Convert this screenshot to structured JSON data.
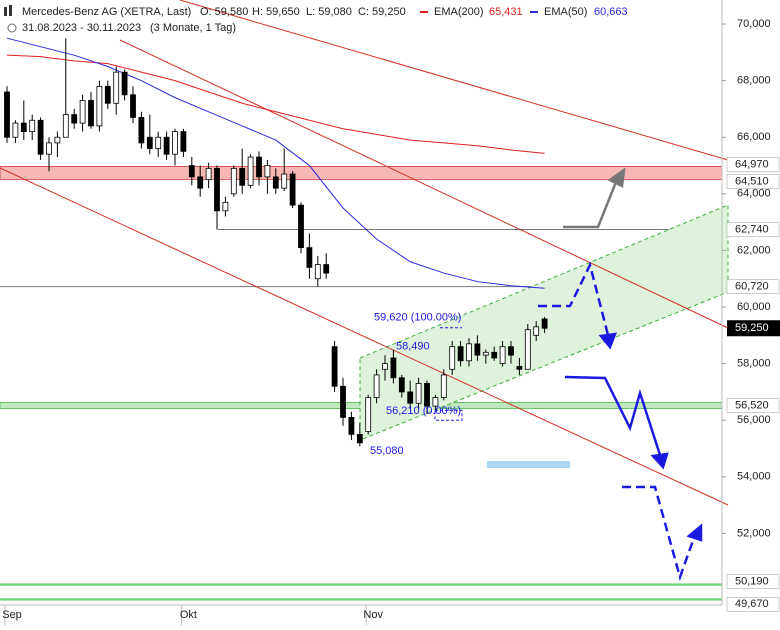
{
  "header": {
    "title": "Mercedes-Benz AG (XETRA, Last)",
    "open": "O: 59,580",
    "high": "H: 59,650",
    "low": "L: 59,080",
    "close": "C: 59,250",
    "range": "31.08.2023 - 30.11.2023",
    "period": "(3 Monate, 1 Tag)"
  },
  "chart_data": {
    "type": "candlestick",
    "categories": [
      "Sep",
      null,
      null,
      null,
      null,
      null,
      null,
      null,
      null,
      null,
      null,
      null,
      null,
      null,
      null,
      null,
      null,
      null,
      null,
      null,
      null,
      "Okt",
      null,
      null,
      null,
      null,
      null,
      null,
      null,
      null,
      null,
      null,
      null,
      null,
      null,
      null,
      null,
      null,
      null,
      null,
      null,
      null,
      null,
      "Nov",
      null,
      null,
      null,
      null,
      null,
      null,
      null,
      null,
      null,
      null,
      null,
      null,
      null,
      null,
      null,
      null,
      null,
      null,
      null,
      null,
      null
    ],
    "open": [
      67.6,
      66.0,
      66.5,
      66.2,
      66.6,
      65.4,
      65.8,
      66.0,
      66.8,
      66.5,
      67.3,
      66.4,
      67.8,
      67.2,
      68.3,
      67.5,
      66.7,
      66.0,
      65.6,
      66.0,
      65.4,
      66.2,
      65.0,
      64.6,
      64.5,
      64.9,
      63.4,
      64.0,
      64.9,
      64.3,
      65.3,
      64.6,
      64.6,
      64.2,
      64.7,
      63.6,
      62.1,
      61.0,
      61.5,
      58.6,
      57.2,
      56.1,
      55.5,
      55.6,
      56.8,
      57.8,
      58.2,
      57.5,
      57.0,
      56.6,
      57.3,
      56.5,
      56.8,
      57.8,
      58.6,
      58.1,
      58.7,
      58.3,
      58.4,
      58.0,
      58.6,
      57.9,
      57.8,
      59.0,
      59.58
    ],
    "high": [
      67.8,
      66.6,
      67.3,
      66.8,
      66.7,
      66.0,
      66.2,
      69.5,
      67.0,
      67.5,
      67.6,
      68.0,
      68.0,
      68.5,
      68.4,
      67.8,
      66.9,
      66.8,
      66.2,
      66.2,
      66.3,
      66.3,
      65.3,
      65.0,
      65.1,
      65.0,
      63.9,
      65.0,
      65.6,
      65.4,
      65.5,
      65.2,
      64.9,
      65.6,
      64.8,
      63.7,
      62.6,
      61.8,
      61.9,
      58.8,
      57.5,
      56.3,
      55.9,
      56.9,
      57.8,
      58.3,
      58.49,
      57.6,
      57.4,
      57.5,
      57.4,
      56.9,
      57.8,
      58.8,
      58.8,
      58.9,
      59.0,
      58.5,
      58.6,
      58.8,
      58.8,
      58.2,
      59.4,
      59.5,
      59.65
    ],
    "low": [
      65.8,
      65.8,
      65.9,
      65.9,
      65.2,
      64.8,
      65.3,
      66.0,
      66.3,
      66.2,
      66.3,
      66.2,
      67.0,
      66.8,
      67.3,
      66.5,
      65.6,
      65.4,
      65.3,
      65.2,
      65.0,
      65.3,
      64.3,
      63.9,
      64.2,
      62.74,
      63.2,
      63.9,
      64.0,
      64.2,
      64.3,
      64.0,
      64.0,
      64.1,
      63.5,
      61.9,
      61.0,
      60.72,
      61.0,
      57.0,
      55.8,
      55.3,
      55.08,
      55.5,
      56.6,
      57.4,
      57.3,
      56.8,
      56.4,
      56.4,
      56.21,
      56.3,
      56.7,
      57.6,
      57.9,
      57.9,
      58.1,
      58.0,
      58.1,
      57.9,
      58.0,
      57.6,
      57.8,
      58.8,
      59.08
    ],
    "close": [
      66.0,
      66.5,
      66.2,
      66.6,
      65.4,
      65.8,
      66.0,
      66.8,
      66.5,
      67.3,
      66.4,
      67.8,
      67.2,
      68.3,
      67.5,
      66.7,
      65.8,
      65.6,
      66.0,
      65.4,
      66.2,
      65.5,
      64.6,
      64.2,
      64.9,
      63.4,
      63.7,
      64.9,
      64.3,
      65.3,
      64.6,
      65.0,
      64.2,
      64.7,
      63.6,
      62.1,
      61.4,
      61.5,
      61.2,
      57.2,
      56.1,
      55.5,
      55.2,
      56.8,
      57.6,
      58.0,
      57.5,
      57.0,
      56.6,
      57.3,
      56.5,
      56.8,
      57.6,
      58.6,
      58.1,
      58.7,
      58.3,
      58.4,
      58.2,
      58.6,
      58.3,
      57.8,
      59.2,
      59.3,
      59.25
    ],
    "up_color": "#ffffff",
    "down_color": "#000000",
    "overlays": [
      {
        "name": "EMA(200)",
        "color": "#e02020",
        "last_label": "65,431",
        "x": [
          0,
          4,
          8,
          12,
          16,
          20,
          24,
          28,
          32,
          36,
          40,
          44,
          48,
          52,
          56,
          60,
          64
        ],
        "values": [
          68.9,
          68.85,
          68.7,
          68.6,
          68.3,
          68.0,
          67.6,
          67.2,
          66.9,
          66.6,
          66.3,
          66.1,
          65.9,
          65.8,
          65.7,
          65.55,
          65.431
        ]
      },
      {
        "name": "EMA(50)",
        "color": "#2a2ae0",
        "last_label": "60,663",
        "x": [
          0,
          4,
          8,
          12,
          16,
          20,
          24,
          28,
          32,
          36,
          40,
          44,
          48,
          52,
          56,
          60,
          64
        ],
        "values": [
          69.5,
          69.2,
          68.9,
          68.5,
          68.0,
          67.4,
          66.9,
          66.4,
          65.9,
          65.0,
          63.5,
          62.4,
          61.6,
          61.2,
          60.9,
          60.75,
          60.663
        ]
      }
    ],
    "ylim": [
      49.47,
      70.85
    ],
    "yticks": [
      {
        "value": 70,
        "label": "70,000"
      },
      {
        "value": 68,
        "label": "68,000"
      },
      {
        "value": 66,
        "label": "66,000"
      },
      {
        "value": 64,
        "label": "64,000"
      },
      {
        "value": 62,
        "label": "62,000"
      },
      {
        "value": 60,
        "label": "60,000"
      },
      {
        "value": 58,
        "label": "58,000"
      },
      {
        "value": 56,
        "label": "56,000"
      },
      {
        "value": 54,
        "label": "54,000"
      },
      {
        "value": 52,
        "label": "52,000"
      }
    ],
    "levels": [
      {
        "value": 64.97,
        "label": "64,970"
      },
      {
        "value": 64.51,
        "label": "64,510"
      },
      {
        "value": 62.74,
        "label": "62,740"
      },
      {
        "value": 60.72,
        "label": "60,720"
      },
      {
        "value": 56.52,
        "label": "56,520"
      },
      {
        "value": 50.19,
        "label": "50,190"
      },
      {
        "value": 49.67,
        "label": "49,670"
      }
    ],
    "last_price": {
      "value": 59.25,
      "label": "59,250"
    },
    "annotations": [
      {
        "value": 59.62,
        "label": "59,620 (100.00%)"
      },
      {
        "value": 58.49,
        "label": "58,490"
      },
      {
        "value": 56.21,
        "label": "56,210 (0.00%)"
      },
      {
        "value": 55.08,
        "label": "55,080"
      }
    ]
  }
}
